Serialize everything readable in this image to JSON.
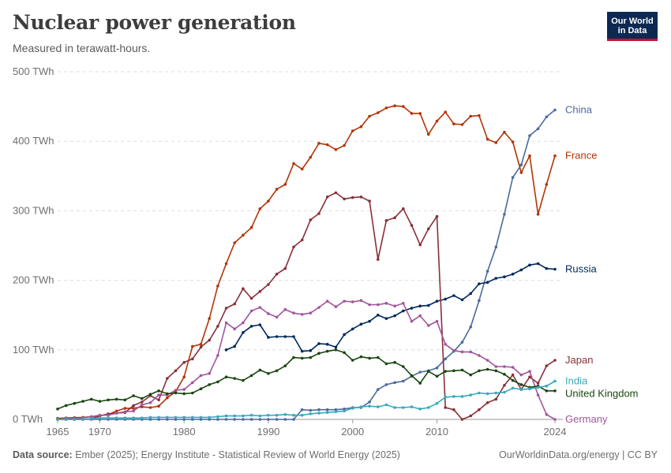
{
  "header": {
    "title": "Nuclear power generation",
    "subtitle": "Measured in terawatt-hours."
  },
  "logo": {
    "line1": "Our World",
    "line2": "in Data"
  },
  "footer": {
    "source_label": "Data source:",
    "source_text": "Ember (2025); Energy Institute - Statistical Review of World Energy (2025)",
    "right_text": "OurWorldinData.org/energy | CC BY"
  },
  "chart_data": {
    "type": "line",
    "xlim": [
      1965,
      2024
    ],
    "ylim": [
      0,
      500
    ],
    "y_ticks": [
      0,
      100,
      200,
      300,
      400,
      500
    ],
    "y_tick_labels": [
      "0 TWh",
      "100 TWh",
      "200 TWh",
      "300 TWh",
      "400 TWh",
      "500 TWh"
    ],
    "x_ticks": [
      1965,
      1970,
      1980,
      1990,
      2000,
      2010,
      2024
    ],
    "x_tick_labels": [
      "1965",
      "1970",
      "1980",
      "1990",
      "2000",
      "2010",
      "2024"
    ],
    "grid": "horizontal dashed",
    "legend": "line-end labels (right)",
    "series": [
      {
        "name": "France",
        "color": "#b13507",
        "x_start": 1965,
        "values": [
          1.5,
          2,
          2.5,
          3,
          4,
          5,
          7,
          12,
          16,
          16,
          18,
          17,
          19,
          31,
          40,
          61,
          105,
          108,
          145,
          192,
          224,
          254,
          265,
          276,
          303,
          314,
          331,
          338,
          368,
          360,
          377,
          397,
          395,
          388,
          394,
          415,
          421,
          436,
          441,
          448,
          451,
          450,
          440,
          440,
          410,
          429,
          442,
          425,
          424,
          436,
          437,
          403,
          398,
          413,
          399,
          355,
          379,
          295,
          338,
          379
        ]
      },
      {
        "name": "China",
        "color": "#4c6a9c",
        "x_start": 1965,
        "values": [
          0,
          0,
          0,
          0,
          0,
          0,
          0,
          0,
          0,
          0,
          0,
          0,
          0,
          0,
          0,
          0,
          0,
          0,
          0,
          0,
          0,
          0,
          0,
          0,
          0,
          0,
          0,
          0,
          0,
          14,
          13,
          14,
          14,
          14,
          15,
          17,
          17,
          25,
          43,
          50,
          53,
          55,
          62,
          68,
          70,
          74,
          87,
          98,
          111,
          133,
          171,
          213,
          248,
          295,
          348,
          366,
          408,
          418,
          435,
          445
        ]
      },
      {
        "name": "Russia",
        "color": "#00295b",
        "x_start": 1985,
        "values": [
          100,
          105,
          125,
          134,
          136,
          118,
          119,
          119,
          119,
          98,
          99,
          109,
          108,
          104,
          122,
          130,
          137,
          141,
          150,
          145,
          149,
          156,
          160,
          163,
          164,
          170,
          173,
          178,
          172,
          181,
          195,
          197,
          203,
          205,
          209,
          215,
          222,
          224,
          217,
          216
        ]
      },
      {
        "name": "Japan",
        "color": "#883039",
        "x_start": 1965,
        "values": [
          0,
          0,
          0,
          0,
          1,
          5,
          8,
          9,
          10,
          20,
          25,
          34,
          28,
          59,
          70,
          82,
          87,
          104,
          114,
          134,
          160,
          166,
          188,
          174,
          184,
          194,
          209,
          217,
          248,
          258,
          287,
          296,
          320,
          326,
          317,
          319,
          320,
          314,
          230,
          286,
          290,
          303,
          279,
          251,
          274,
          292,
          17,
          14,
          0,
          5,
          14,
          24,
          29,
          49,
          64,
          43,
          61,
          52,
          77,
          85
        ]
      },
      {
        "name": "Germany",
        "color": "#a2559c",
        "x_start": 1965,
        "values": [
          0,
          1,
          1,
          2,
          4,
          6,
          6,
          9,
          11,
          12,
          21,
          24,
          35,
          35,
          42,
          43,
          53,
          63,
          66,
          92,
          139,
          130,
          139,
          156,
          161,
          152,
          147,
          158,
          153,
          151,
          153,
          161,
          170,
          162,
          170,
          169,
          171,
          165,
          165,
          167,
          163,
          167,
          141,
          149,
          135,
          141,
          108,
          99,
          97,
          97,
          92,
          85,
          76,
          76,
          75,
          64,
          69,
          35,
          7,
          0
        ]
      },
      {
        "name": "United Kingdom",
        "color": "#18470f",
        "x_start": 1965,
        "values": [
          15,
          20,
          23,
          26,
          29,
          26,
          28,
          29,
          28,
          34,
          30,
          36,
          41,
          37,
          38,
          37,
          38,
          44,
          50,
          54,
          61,
          59,
          56,
          63,
          71,
          66,
          70,
          77,
          89,
          88,
          89,
          95,
          98,
          100,
          96,
          85,
          90,
          88,
          89,
          80,
          82,
          76,
          63,
          52,
          69,
          62,
          69,
          70,
          71,
          64,
          70,
          72,
          70,
          65,
          56,
          50,
          46,
          48,
          41,
          41
        ]
      },
      {
        "name": "India",
        "color": "#38aaba",
        "x_start": 1965,
        "values": [
          0,
          0,
          0,
          0,
          1,
          2,
          2,
          2,
          2,
          2,
          2,
          3,
          3,
          3,
          3,
          3,
          3,
          3,
          3,
          4,
          5,
          5,
          5,
          6,
          5,
          6,
          6,
          7,
          6,
          6,
          8,
          9,
          10,
          11,
          12,
          16,
          18,
          19,
          18,
          21,
          17,
          17,
          18,
          15,
          17,
          23,
          32,
          33,
          33,
          35,
          38,
          37,
          38,
          39,
          45,
          43,
          44,
          46,
          48,
          55
        ]
      }
    ]
  }
}
